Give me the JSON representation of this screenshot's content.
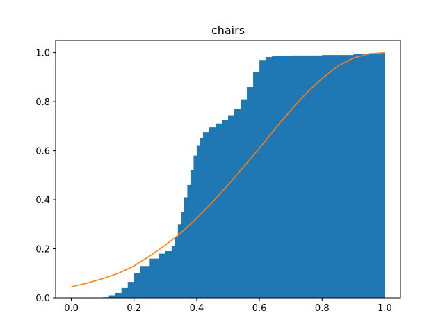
{
  "chart_data": {
    "type": "area",
    "title": "chairs",
    "xlabel": "",
    "ylabel": "",
    "xlim": [
      -0.05,
      1.05
    ],
    "ylim": [
      0.0,
      1.05
    ],
    "x_ticks": [
      0.0,
      0.2,
      0.4,
      0.6,
      0.8,
      1.0
    ],
    "x_tick_labels": [
      "0.0",
      "0.2",
      "0.4",
      "0.6",
      "0.8",
      "1.0"
    ],
    "y_ticks": [
      0.0,
      0.2,
      0.4,
      0.6,
      0.8,
      1.0
    ],
    "y_tick_labels": [
      "0.0",
      "0.2",
      "0.4",
      "0.6",
      "0.8",
      "1.0"
    ],
    "grid": false,
    "colors": {
      "histogram": "#1f77b4",
      "curve": "#ff7f0e"
    },
    "series": [
      {
        "kind": "cumulative-histogram",
        "x": [
          0.0,
          0.08,
          0.1,
          0.12,
          0.14,
          0.16,
          0.18,
          0.2,
          0.22,
          0.25,
          0.28,
          0.3,
          0.32,
          0.33,
          0.34,
          0.35,
          0.36,
          0.37,
          0.38,
          0.39,
          0.4,
          0.41,
          0.42,
          0.44,
          0.46,
          0.48,
          0.5,
          0.52,
          0.54,
          0.56,
          0.58,
          0.6,
          0.62,
          0.64,
          0.7,
          0.8,
          0.9,
          0.95,
          1.0
        ],
        "values": [
          0.0,
          0.0,
          0.002,
          0.01,
          0.02,
          0.04,
          0.065,
          0.1,
          0.13,
          0.16,
          0.18,
          0.19,
          0.21,
          0.25,
          0.3,
          0.35,
          0.41,
          0.46,
          0.52,
          0.58,
          0.62,
          0.65,
          0.675,
          0.695,
          0.71,
          0.725,
          0.745,
          0.77,
          0.81,
          0.86,
          0.92,
          0.97,
          0.982,
          0.985,
          0.988,
          0.99,
          0.995,
          0.998,
          1.0
        ]
      },
      {
        "kind": "line",
        "x": [
          0.0,
          0.05,
          0.1,
          0.15,
          0.2,
          0.25,
          0.3,
          0.35,
          0.4,
          0.45,
          0.5,
          0.55,
          0.6,
          0.65,
          0.7,
          0.75,
          0.8,
          0.85,
          0.9,
          0.95,
          1.0
        ],
        "values": [
          0.045,
          0.06,
          0.078,
          0.1,
          0.13,
          0.17,
          0.215,
          0.265,
          0.325,
          0.39,
          0.46,
          0.535,
          0.61,
          0.69,
          0.765,
          0.835,
          0.895,
          0.945,
          0.978,
          0.995,
          1.0
        ]
      }
    ]
  }
}
